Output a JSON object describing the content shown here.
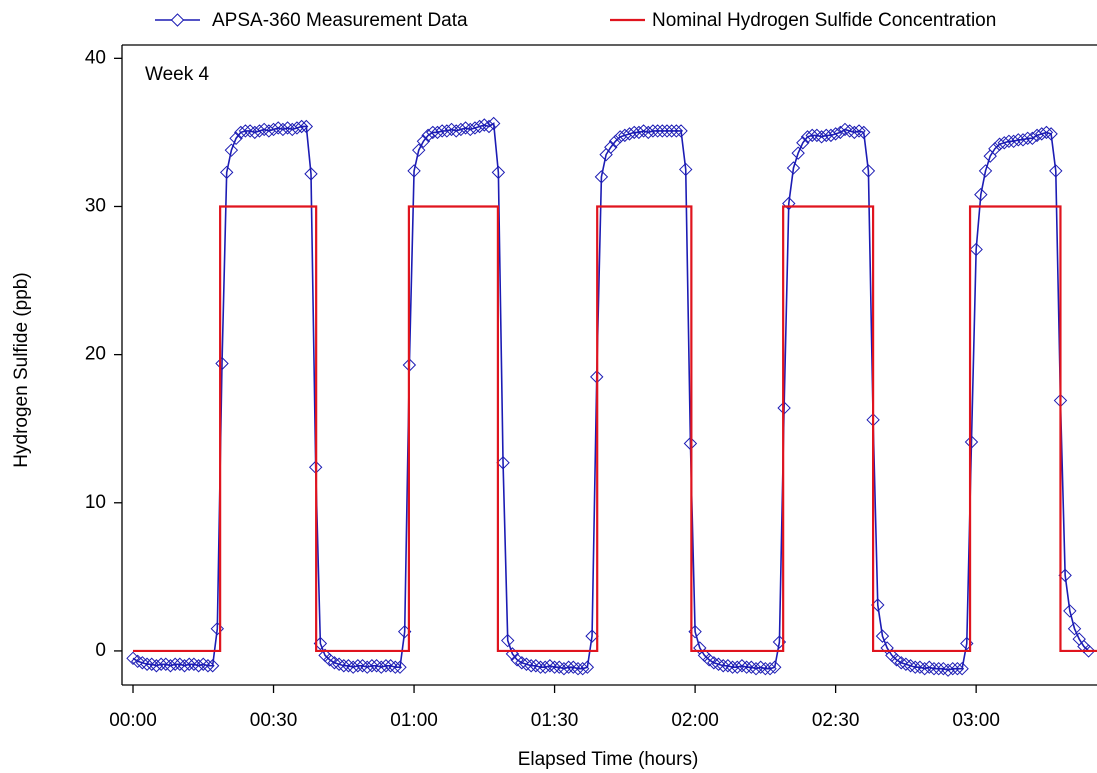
{
  "chart_data": {
    "type": "line",
    "annotation": "Week 4",
    "xlabel": "Elapsed Time (hours)",
    "ylabel": "Hydrogen Sulfide (ppb)",
    "xlim": [
      -2.35,
      205.8
    ],
    "ylim": [
      -2.3,
      40.9
    ],
    "xticks": [
      {
        "value": 0,
        "label": "00:00"
      },
      {
        "value": 30,
        "label": "00:30"
      },
      {
        "value": 60,
        "label": "01:00"
      },
      {
        "value": 90,
        "label": "01:30"
      },
      {
        "value": 120,
        "label": "02:00"
      },
      {
        "value": 150,
        "label": "02:30"
      },
      {
        "value": 180,
        "label": "03:00"
      }
    ],
    "yticks": [
      0,
      10,
      20,
      30,
      40
    ],
    "series": [
      {
        "name": "APSA-360 Measurement Data",
        "color": "#1c1cb4",
        "marker": "diamond",
        "x": [
          0,
          1,
          2,
          3,
          4,
          5,
          6,
          7,
          8,
          9,
          10,
          11,
          12,
          13,
          14,
          15,
          16,
          17,
          18,
          19,
          20,
          21,
          22,
          23,
          24,
          25,
          26,
          27,
          28,
          29,
          30,
          31,
          32,
          33,
          34,
          35,
          36,
          37,
          38,
          39,
          40,
          41,
          42,
          43,
          44,
          45,
          46,
          47,
          48,
          49,
          50,
          51,
          52,
          53,
          54,
          55,
          56,
          57,
          58,
          59,
          60,
          61,
          62,
          63,
          64,
          65,
          66,
          67,
          68,
          69,
          70,
          71,
          72,
          73,
          74,
          75,
          76,
          77,
          78,
          79,
          80,
          81,
          82,
          83,
          84,
          85,
          86,
          87,
          88,
          89,
          90,
          91,
          92,
          93,
          94,
          95,
          96,
          97,
          98,
          99,
          100,
          101,
          102,
          103,
          104,
          105,
          106,
          107,
          108,
          109,
          110,
          111,
          112,
          113,
          114,
          115,
          116,
          117,
          118,
          119,
          120,
          121,
          122,
          123,
          124,
          125,
          126,
          127,
          128,
          129,
          130,
          131,
          132,
          133,
          134,
          135,
          136,
          137,
          138,
          139,
          140,
          141,
          142,
          143,
          144,
          145,
          146,
          147,
          148,
          149,
          150,
          151,
          152,
          153,
          154,
          155,
          156,
          157,
          158,
          159,
          160,
          161,
          162,
          163,
          164,
          165,
          166,
          167,
          168,
          169,
          170,
          171,
          172,
          173,
          174,
          175,
          176,
          177,
          178,
          179,
          180,
          181,
          182,
          183,
          184,
          185,
          186,
          187,
          188,
          189,
          190,
          191,
          192,
          193,
          194,
          195,
          196,
          197,
          198,
          199,
          200,
          201,
          202,
          203,
          204
        ],
        "values": [
          -0.5,
          -0.7,
          -0.8,
          -0.9,
          -0.9,
          -1.0,
          -0.9,
          -0.9,
          -1.0,
          -0.9,
          -0.9,
          -1.0,
          -0.9,
          -0.9,
          -1.0,
          -0.9,
          -1.0,
          -1.0,
          1.5,
          19.4,
          32.3,
          33.8,
          34.6,
          35.0,
          35.1,
          35.1,
          35.0,
          35.1,
          35.2,
          35.1,
          35.2,
          35.3,
          35.2,
          35.3,
          35.2,
          35.3,
          35.4,
          35.4,
          32.2,
          12.4,
          0.5,
          -0.3,
          -0.6,
          -0.8,
          -0.9,
          -1.0,
          -1.0,
          -1.1,
          -1.0,
          -1.0,
          -1.1,
          -1.0,
          -1.0,
          -1.1,
          -1.0,
          -1.0,
          -1.1,
          -1.1,
          1.3,
          19.3,
          32.4,
          33.8,
          34.4,
          34.8,
          35.0,
          35.0,
          35.1,
          35.1,
          35.2,
          35.1,
          35.2,
          35.3,
          35.2,
          35.3,
          35.4,
          35.5,
          35.4,
          35.6,
          32.3,
          12.7,
          0.7,
          -0.2,
          -0.6,
          -0.8,
          -0.9,
          -1.0,
          -1.0,
          -1.1,
          -1.1,
          -1.0,
          -1.1,
          -1.1,
          -1.2,
          -1.1,
          -1.1,
          -1.2,
          -1.2,
          -1.1,
          1.0,
          18.5,
          32.0,
          33.5,
          34.0,
          34.4,
          34.7,
          34.8,
          34.9,
          35.0,
          35.0,
          35.1,
          35.0,
          35.1,
          35.1,
          35.1,
          35.1,
          35.1,
          35.1,
          35.1,
          32.5,
          14.0,
          1.3,
          0.2,
          -0.3,
          -0.6,
          -0.8,
          -0.9,
          -1.0,
          -1.0,
          -1.1,
          -1.1,
          -1.0,
          -1.1,
          -1.1,
          -1.2,
          -1.1,
          -1.2,
          -1.2,
          -1.1,
          0.6,
          16.4,
          30.2,
          32.6,
          33.6,
          34.3,
          34.7,
          34.8,
          34.8,
          34.7,
          34.8,
          34.8,
          34.9,
          35.0,
          35.2,
          35.1,
          35.0,
          35.1,
          35.0,
          32.4,
          15.6,
          3.1,
          1.0,
          0.2,
          -0.3,
          -0.6,
          -0.8,
          -0.9,
          -1.0,
          -1.1,
          -1.1,
          -1.2,
          -1.1,
          -1.2,
          -1.2,
          -1.2,
          -1.3,
          -1.2,
          -1.2,
          -1.2,
          0.5,
          14.1,
          27.1,
          30.8,
          32.4,
          33.4,
          33.9,
          34.2,
          34.3,
          34.4,
          34.4,
          34.5,
          34.5,
          34.6,
          34.6,
          34.8,
          34.9,
          35.0,
          34.9,
          32.4,
          16.9,
          5.1,
          2.7,
          1.5,
          0.8,
          0.3,
          0.0
        ]
      },
      {
        "name": "Nominal Hydrogen Sulfide Concentration",
        "color": "#e0141e",
        "x": [
          0,
          18.6,
          18.6,
          39.1,
          39.1,
          58.9,
          58.9,
          77.9,
          77.9,
          99.1,
          99.1,
          119.2,
          119.2,
          138.8,
          138.8,
          158,
          158,
          178.7,
          178.7,
          198,
          198,
          205.8
        ],
        "values": [
          0,
          0,
          30,
          30,
          0,
          0,
          30,
          30,
          0,
          0,
          30,
          30,
          0,
          0,
          30,
          30,
          0,
          0,
          30,
          30,
          0,
          0
        ]
      }
    ]
  }
}
